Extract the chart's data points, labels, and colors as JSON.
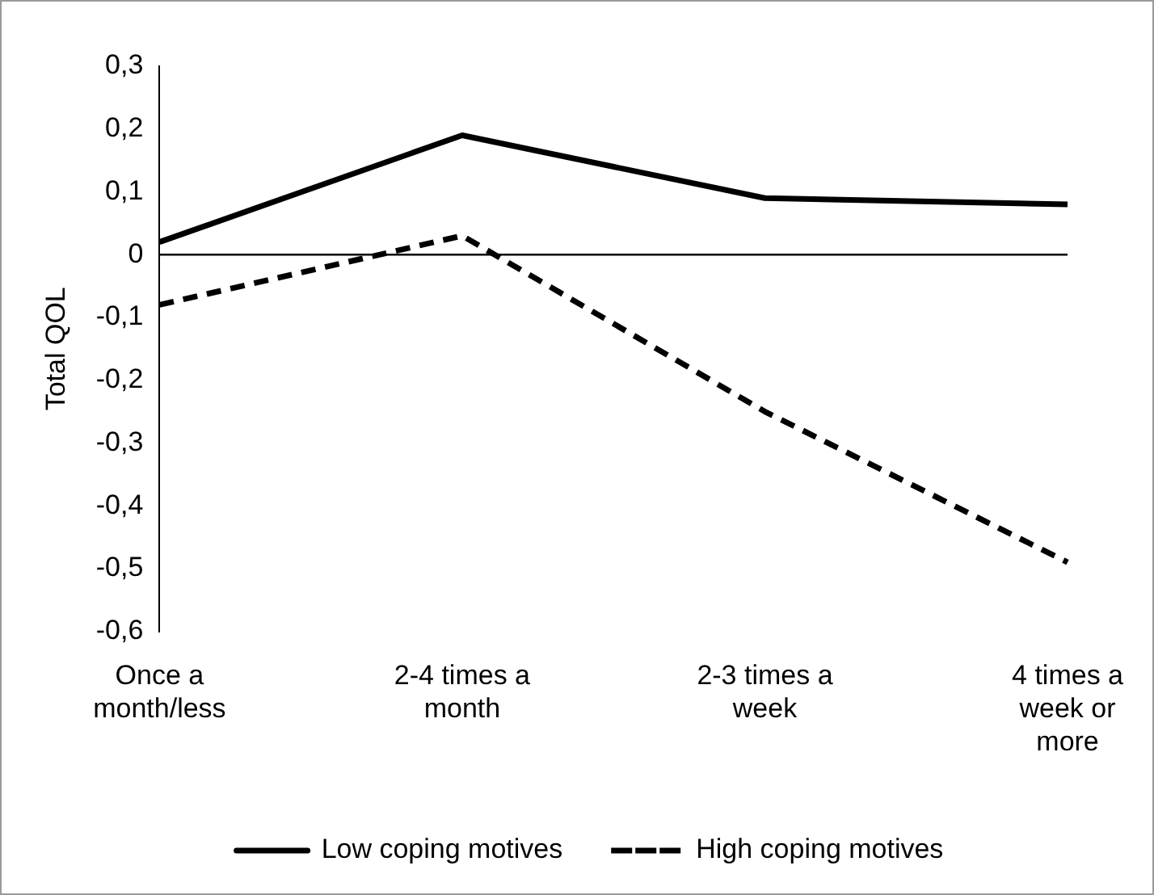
{
  "chart_data": {
    "type": "line",
    "ylabel": "Total QOL",
    "categories": [
      "Once a month/less",
      "2-4 times a month",
      "2-3 times a week",
      "4 times a week or more"
    ],
    "series": [
      {
        "name": "Low coping motives",
        "color": "#000000",
        "line_style": "solid",
        "values": [
          0.02,
          0.19,
          0.09,
          0.08
        ]
      },
      {
        "name": "High coping motives",
        "color": "#000000",
        "line_style": "dashed",
        "values": [
          -0.08,
          0.03,
          -0.25,
          -0.49
        ]
      }
    ],
    "ylim": [
      -0.6,
      0.3
    ],
    "yticks": [
      {
        "value": 0.3,
        "label": "0,3"
      },
      {
        "value": 0.2,
        "label": "0,2"
      },
      {
        "value": 0.1,
        "label": "0,1"
      },
      0,
      {
        "value": -0.1,
        "label": "-0,1"
      },
      {
        "value": -0.2,
        "label": "-0,2"
      },
      {
        "value": -0.3,
        "label": "-0,3"
      },
      {
        "value": -0.4,
        "label": "-0,4"
      },
      {
        "value": -0.5,
        "label": "-0,5"
      },
      {
        "value": -0.6,
        "label": "-0,6"
      }
    ],
    "ref_lines": [
      {
        "axis": "y",
        "value": 0,
        "color": "#000000"
      }
    ],
    "grid": false,
    "legend": "bottom",
    "marker": "none"
  }
}
